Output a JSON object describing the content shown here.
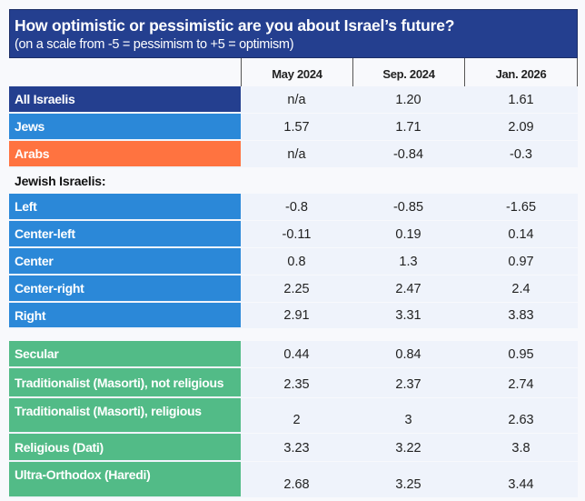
{
  "title": "How optimistic or pessimistic are you about Israel’s future?",
  "subtitle": "(on a scale from -5  = pessimism  to +5  = optimism)",
  "columns": [
    "May 2024",
    "Sep. 2024",
    "Jan. 2026"
  ],
  "colors": {
    "navy": "#243f8f",
    "blue": "#2b88d8",
    "orange": "#ff7340",
    "green": "#52bb87"
  },
  "groups_top": [
    {
      "label": "All Israelis",
      "values": [
        "n/a",
        "1.20",
        "1.61"
      ]
    },
    {
      "label": "Jews",
      "values": [
        "1.57",
        "1.71",
        "2.09"
      ]
    },
    {
      "label": "Arabs",
      "values": [
        "n/a",
        "-0.84",
        "-0.3"
      ]
    }
  ],
  "section_label": "Jewish Israelis:",
  "political": [
    {
      "label": "Left",
      "values": [
        "-0.8",
        "-0.85",
        "-1.65"
      ]
    },
    {
      "label": "Center-left",
      "values": [
        "-0.11",
        "0.19",
        "0.14"
      ]
    },
    {
      "label": "Center",
      "values": [
        "0.8",
        "1.3",
        "0.97"
      ]
    },
    {
      "label": "Center-right",
      "values": [
        "2.25",
        "2.47",
        "2.4"
      ]
    },
    {
      "label": "Right",
      "values": [
        "2.91",
        "3.31",
        "3.83"
      ]
    }
  ],
  "religious": [
    {
      "label": "Secular",
      "values": [
        "0.44",
        "0.84",
        "0.95"
      ]
    },
    {
      "label": "Traditionalist (Masorti), not religious",
      "values": [
        "2.35",
        "2.37",
        "2.74"
      ]
    },
    {
      "label": "Traditionalist (Masorti), religious",
      "values": [
        "2",
        "3",
        "2.63"
      ]
    },
    {
      "label": "Religious (Dati)",
      "values": [
        "3.23",
        "3.22",
        "3.8"
      ]
    },
    {
      "label": "Ultra-Orthodox (Haredi)",
      "values": [
        "2.68",
        "3.25",
        "3.44"
      ]
    }
  ]
}
